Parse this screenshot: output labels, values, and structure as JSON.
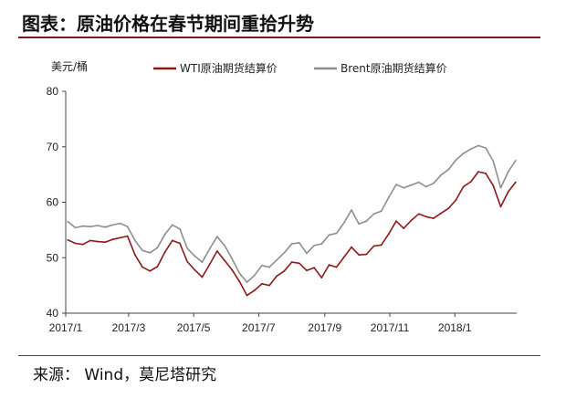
{
  "header": {
    "title": "图表：原油价格在春节期间重拾升势"
  },
  "footer": {
    "source": "来源： Wind，莫尼塔研究"
  },
  "chart_data": {
    "type": "line",
    "ylabel": "美元/桶",
    "ylim": [
      40,
      80
    ],
    "y_ticks": [
      "40",
      "50",
      "60",
      "70",
      "80"
    ],
    "x_ticks": [
      "2017/1",
      "2017/3",
      "2017/5",
      "2017/7",
      "2017/9",
      "2017/11",
      "2018/1"
    ],
    "xlim": [
      "2017-01-01",
      "2018-02-28"
    ],
    "grid": false,
    "legend_position": "top",
    "x": [
      "2017-01-03",
      "2017-01-10",
      "2017-01-17",
      "2017-01-24",
      "2017-01-31",
      "2017-02-07",
      "2017-02-14",
      "2017-02-21",
      "2017-02-28",
      "2017-03-07",
      "2017-03-14",
      "2017-03-21",
      "2017-03-28",
      "2017-04-04",
      "2017-04-11",
      "2017-04-18",
      "2017-04-25",
      "2017-05-02",
      "2017-05-09",
      "2017-05-16",
      "2017-05-23",
      "2017-05-30",
      "2017-06-06",
      "2017-06-13",
      "2017-06-20",
      "2017-06-27",
      "2017-07-04",
      "2017-07-11",
      "2017-07-18",
      "2017-07-25",
      "2017-08-01",
      "2017-08-08",
      "2017-08-15",
      "2017-08-22",
      "2017-08-29",
      "2017-09-05",
      "2017-09-12",
      "2017-09-19",
      "2017-09-26",
      "2017-10-03",
      "2017-10-10",
      "2017-10-17",
      "2017-10-24",
      "2017-10-31",
      "2017-11-07",
      "2017-11-14",
      "2017-11-21",
      "2017-11-28",
      "2017-12-05",
      "2017-12-12",
      "2017-12-19",
      "2017-12-26",
      "2018-01-02",
      "2018-01-09",
      "2018-01-16",
      "2018-01-23",
      "2018-01-30",
      "2018-02-06",
      "2018-02-13",
      "2018-02-20",
      "2018-02-27"
    ],
    "series": [
      {
        "name": "WTI原油期货结算价",
        "color": "#8b1a1a",
        "values": [
          53.2,
          52.6,
          52.4,
          53.1,
          52.9,
          52.8,
          53.3,
          53.6,
          53.9,
          50.5,
          48.3,
          47.6,
          48.4,
          51.0,
          53.1,
          52.6,
          49.3,
          47.8,
          46.5,
          48.8,
          51.2,
          49.5,
          47.8,
          45.7,
          43.2,
          44.1,
          45.3,
          45.0,
          46.7,
          47.6,
          49.2,
          49.0,
          47.7,
          48.2,
          46.4,
          48.7,
          48.3,
          50.1,
          51.9,
          50.5,
          50.6,
          52.1,
          52.3,
          54.3,
          56.6,
          55.3,
          56.7,
          57.9,
          57.4,
          57.1,
          58.0,
          58.9,
          60.4,
          62.8,
          63.7,
          65.5,
          65.2,
          63.0,
          59.2,
          61.9,
          63.6
        ]
      },
      {
        "name": "Brent原油期货结算价",
        "color": "#8e8e8e",
        "values": [
          56.5,
          55.4,
          55.7,
          55.6,
          55.8,
          55.5,
          55.9,
          56.2,
          55.6,
          53.1,
          51.3,
          50.9,
          51.8,
          54.2,
          55.9,
          55.2,
          51.7,
          50.3,
          49.2,
          51.6,
          53.8,
          52.2,
          49.8,
          47.2,
          45.6,
          46.8,
          48.6,
          48.3,
          49.6,
          50.9,
          52.5,
          52.7,
          50.8,
          52.2,
          52.5,
          54.1,
          54.4,
          56.3,
          58.6,
          56.1,
          56.6,
          57.9,
          58.4,
          60.9,
          63.2,
          62.6,
          63.1,
          63.6,
          62.8,
          63.4,
          64.9,
          65.9,
          67.6,
          68.8,
          69.6,
          70.2,
          69.8,
          67.4,
          62.6,
          65.5,
          67.5
        ]
      }
    ]
  }
}
